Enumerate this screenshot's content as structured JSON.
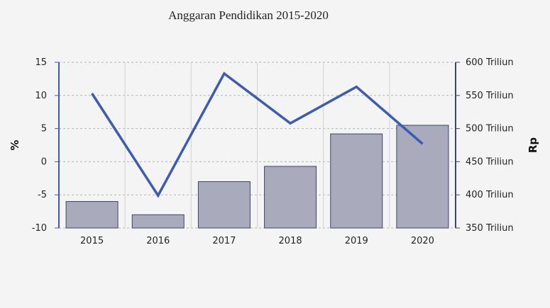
{
  "chart_data": {
    "type": "bar+line",
    "title": "Anggaran Pendidikan 2015-2020",
    "categories": [
      "2015",
      "2016",
      "2017",
      "2018",
      "2019",
      "2020"
    ],
    "bar_series": {
      "axis": "right",
      "unit": "Triliun",
      "values": [
        390,
        370,
        420,
        443,
        492,
        505
      ],
      "color": "#a9aabb",
      "stroke": "#3f4466"
    },
    "line_series": {
      "axis": "left",
      "values": [
        10.3,
        -5.1,
        13.3,
        5.8,
        11.3,
        2.7
      ],
      "color": "#3a5cb5"
    },
    "left_axis": {
      "label": "%",
      "ylim": [
        -10,
        15
      ],
      "ticks": [
        15,
        10,
        5,
        0,
        -5,
        -10
      ]
    },
    "right_axis": {
      "label": "Rp",
      "ylim": [
        350,
        600
      ],
      "ticks": [
        "600 Triliun",
        "550 Triliun",
        "500 Triliun",
        "450 Triliun",
        "400 Triliun",
        "350 Triliun"
      ]
    },
    "grid": true
  }
}
